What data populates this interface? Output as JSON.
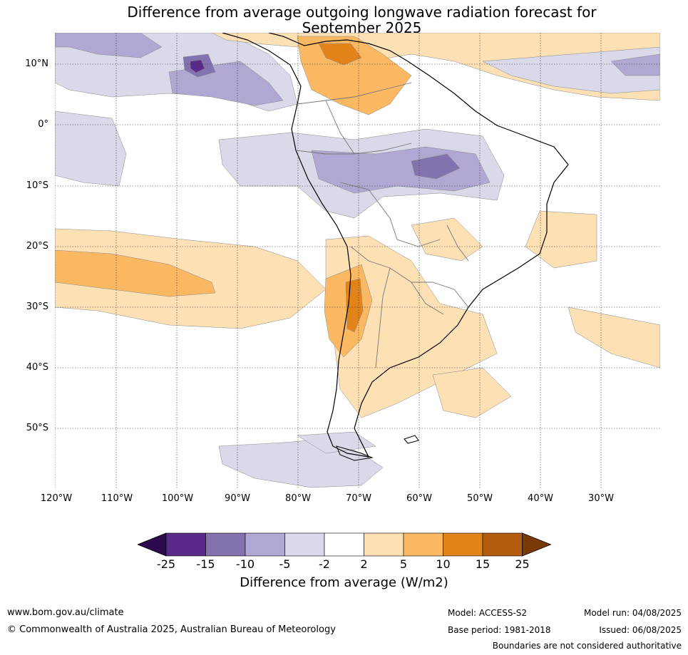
{
  "title_line1": "Difference from average outgoing longwave radiation forecast for",
  "title_line2": "September 2025",
  "lat_labels": [
    "10°N",
    "0°",
    "10°S",
    "20°S",
    "30°S",
    "40°S",
    "50°S"
  ],
  "lon_labels": [
    "120°W",
    "110°W",
    "100°W",
    "90°W",
    "80°W",
    "70°W",
    "60°W",
    "50°W",
    "40°W",
    "30°W"
  ],
  "colorbar": {
    "ticks": [
      "-25",
      "-15",
      "-10",
      "-5",
      "-2",
      "2",
      "5",
      "10",
      "15",
      "25"
    ],
    "colors": [
      "#5a2a8a",
      "#8272ae",
      "#b0a8d2",
      "#d9d9ea",
      "#ffffff",
      "#fde0b4",
      "#fbb863",
      "#e2841a",
      "#b35c0e"
    ],
    "under_color": "#2d0a4e",
    "over_color": "#7a3a08",
    "label": "Difference from average (W/m2)"
  },
  "footer": {
    "website": "www.bom.gov.au/climate",
    "copyright": "© Commonwealth of Australia 2025, Australian Bureau of Meteorology",
    "model": "Model: ACCESS-S2",
    "base_period": "Base period: 1981-2018",
    "model_run": "Model run: 04/08/2025",
    "issued": "Issued: 06/08/2025",
    "disclaimer": "Boundaries are not considered authoritative"
  }
}
